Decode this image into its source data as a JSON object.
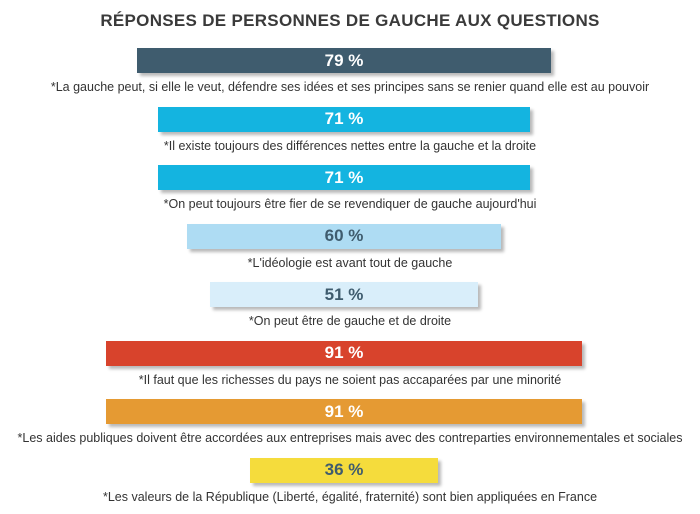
{
  "chart_data": {
    "type": "bar",
    "orientation": "horizontal-centered",
    "title": "RÉPONSES DE PERSONNES DE GAUCHE AUX QUESTIONS",
    "unit": "%",
    "categories": [
      "*La gauche peut, si elle le veut, défendre ses idées et ses principes sans se renier quand elle est au pouvoir",
      "*Il existe toujours des différences nettes entre la gauche et la droite",
      "*On peut toujours être fier de se revendiquer de gauche aujourd'hui",
      "*L'idéologie est avant tout de gauche",
      "*On peut être de gauche et de droite",
      "*Il faut que les richesses du pays ne soient pas accaparées par une minorité",
      "*Les aides publiques doivent être accordées aux entreprises mais avec des contreparties environnementales et sociales",
      "*Les valeurs de la République (Liberté, égalité, fraternité) sont bien appliquées en France"
    ],
    "values": [
      79,
      71,
      71,
      60,
      51,
      91,
      91,
      36
    ],
    "value_labels": [
      "79 %",
      "71 %",
      "71 %",
      "60 %",
      "51 %",
      "91 %",
      "91 %",
      "36 %"
    ],
    "colors": [
      "#3f5c6e",
      "#14b4e0",
      "#14b4e0",
      "#aedcf3",
      "#d9eefa",
      "#d8432c",
      "#e59a33",
      "#f5dc3c"
    ],
    "dark_text": [
      false,
      false,
      false,
      true,
      true,
      false,
      false,
      true
    ],
    "xlim": [
      0,
      100
    ],
    "grid": false,
    "legend": "none"
  }
}
